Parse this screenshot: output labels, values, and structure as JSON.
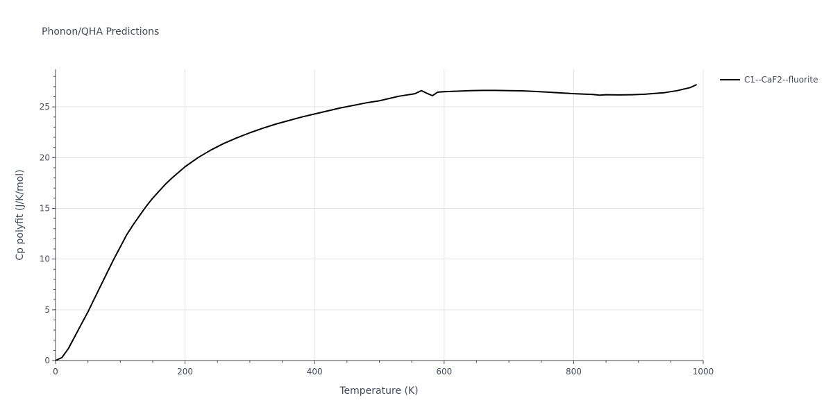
{
  "chart_data": {
    "type": "line",
    "title": "Phonon/QHA Predictions",
    "xlabel": "Temperature (K)",
    "ylabel": "Cp polyfit (J/K/mol)",
    "xlim": [
      0,
      1000
    ],
    "ylim": [
      0,
      28.7
    ],
    "xticks": [
      0,
      200,
      400,
      600,
      800,
      1000
    ],
    "yticks": [
      0,
      5,
      10,
      15,
      20,
      25
    ],
    "grid": true,
    "legend_position": "top-right",
    "series": [
      {
        "name": "C1--CaF2--fluorite",
        "color": "#000000",
        "x": [
          0,
          10,
          20,
          30,
          40,
          50,
          60,
          70,
          80,
          90,
          100,
          110,
          120,
          130,
          140,
          150,
          160,
          170,
          180,
          190,
          200,
          220,
          240,
          260,
          280,
          300,
          320,
          340,
          360,
          380,
          400,
          420,
          440,
          460,
          480,
          500,
          510,
          520,
          530,
          540,
          550,
          555,
          565,
          573,
          582,
          590,
          600,
          620,
          640,
          660,
          680,
          700,
          720,
          740,
          760,
          780,
          800,
          820,
          830,
          840,
          850,
          870,
          890,
          910,
          920,
          930,
          940,
          960,
          980,
          990
        ],
        "y": [
          0,
          0.3,
          1.2,
          2.4,
          3.6,
          4.8,
          6.1,
          7.4,
          8.7,
          10.0,
          11.2,
          12.4,
          13.4,
          14.3,
          15.2,
          16.0,
          16.7,
          17.4,
          18.0,
          18.55,
          19.1,
          20.0,
          20.75,
          21.4,
          21.95,
          22.45,
          22.9,
          23.3,
          23.65,
          24.0,
          24.3,
          24.6,
          24.9,
          25.15,
          25.4,
          25.6,
          25.75,
          25.9,
          26.05,
          26.15,
          26.25,
          26.3,
          26.6,
          26.35,
          26.1,
          26.45,
          26.5,
          26.55,
          26.6,
          26.62,
          26.62,
          26.6,
          26.58,
          26.52,
          26.45,
          26.38,
          26.3,
          26.25,
          26.22,
          26.15,
          26.2,
          26.18,
          26.2,
          26.25,
          26.3,
          26.35,
          26.4,
          26.6,
          26.9,
          27.2
        ]
      }
    ]
  }
}
